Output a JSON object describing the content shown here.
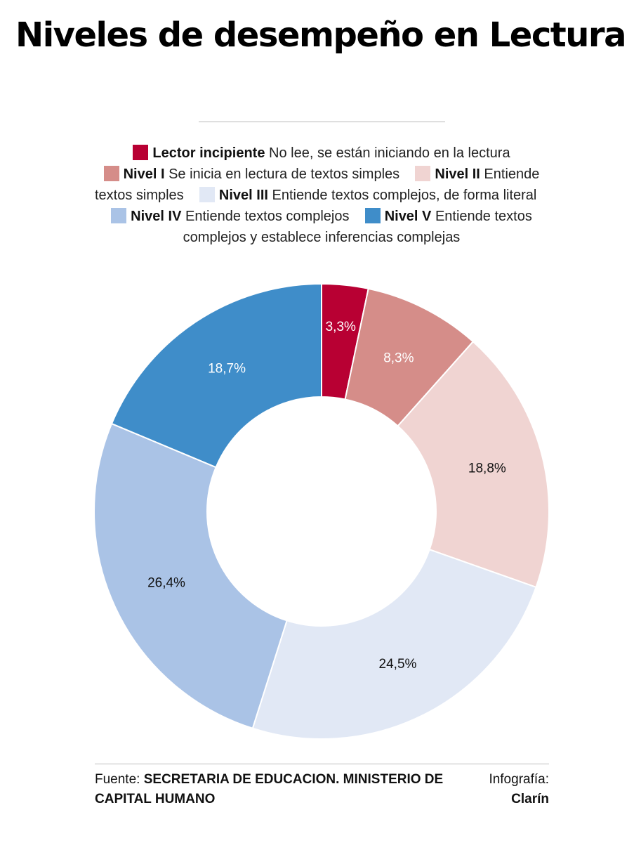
{
  "title": "Niveles de desempeño en Lectura",
  "legend": [
    {
      "name": "Lector incipiente",
      "desc": "No lee, se están iniciando en la lectura",
      "color": "#b80033"
    },
    {
      "name": "Nivel I",
      "desc": "Se inicia en lectura de textos simples",
      "color": "#d58d89"
    },
    {
      "name": "Nivel II",
      "desc": "Entiende textos simples",
      "color": "#f0d4d2"
    },
    {
      "name": "Nivel III",
      "desc": "Entiende textos complejos, de forma literal",
      "color": "#e1e8f5"
    },
    {
      "name": "Nivel IV",
      "desc": "Entiende textos complejos",
      "color": "#aac3e6"
    },
    {
      "name": "Nivel V",
      "desc": "Entiende textos complejos y establece inferencias complejas",
      "color": "#3f8dc9"
    }
  ],
  "chart_data": {
    "type": "pie",
    "title": "Niveles de desempeño en Lectura",
    "categories": [
      "Lector incipiente",
      "Nivel I",
      "Nivel II",
      "Nivel III",
      "Nivel IV",
      "Nivel V"
    ],
    "values": [
      3.3,
      8.3,
      18.8,
      24.5,
      26.4,
      18.7
    ],
    "labels": [
      "3,3%",
      "8,3%",
      "18,8%",
      "24,5%",
      "26,4%",
      "18,7%"
    ],
    "colors": [
      "#b80033",
      "#d58d89",
      "#f0d4d2",
      "#e1e8f5",
      "#aac3e6",
      "#3f8dc9"
    ],
    "label_colors": [
      "#ffffff",
      "#ffffff",
      "#111111",
      "#111111",
      "#111111",
      "#ffffff"
    ],
    "donut": true,
    "legend_position": "top"
  },
  "footer": {
    "source_prefix": "Fuente:",
    "source_text": "SECRETARIA DE EDUCACION. MINISTERIO DE CAPITAL HUMANO",
    "credit_prefix": "Infografía:",
    "credit_name": "Clarín"
  }
}
